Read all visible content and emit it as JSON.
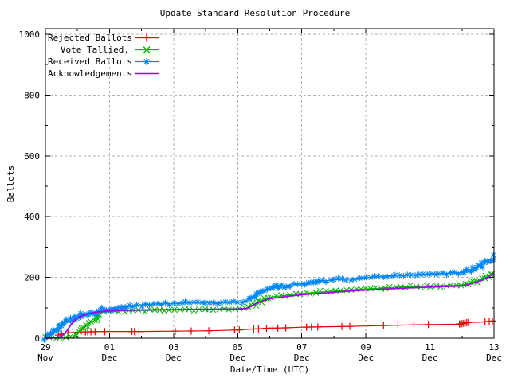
{
  "chart_data": {
    "type": "line",
    "title": "Update Standard Resolution Procedure",
    "xlabel": "Date/Time (UTC)",
    "ylabel": "Ballots",
    "ylim": [
      0,
      1000
    ],
    "grid": true,
    "legend_position": "top-left",
    "x_axis": {
      "range_days": [
        0,
        14
      ],
      "major_tick_days": [
        0,
        2,
        4,
        6,
        8,
        10,
        12,
        14
      ],
      "minor_tick_days": [
        1,
        3,
        5,
        7,
        9,
        11,
        13
      ],
      "tick_labels": [
        {
          "day": "29",
          "month": "Nov"
        },
        {
          "day": "01",
          "month": "Dec"
        },
        {
          "day": "03",
          "month": "Dec"
        },
        {
          "day": "05",
          "month": "Dec"
        },
        {
          "day": "07",
          "month": "Dec"
        },
        {
          "day": "09",
          "month": "Dec"
        },
        {
          "day": "11",
          "month": "Dec"
        },
        {
          "day": "13",
          "month": "Dec"
        }
      ]
    },
    "y_axis": {
      "major_ticks": [
        0,
        200,
        400,
        600,
        800,
        1000
      ],
      "minor_ticks": [
        100,
        300,
        500,
        700,
        900
      ]
    },
    "colors": {
      "background": "#ffffff",
      "border": "#000000",
      "grid": "#b0b0b0",
      "rejected": "#ee0000",
      "tallied": "#00b400",
      "received": "#0087f5",
      "acknowledgements": "#a000f0"
    },
    "series": [
      {
        "name": "Rejected Ballots",
        "color": "#ee0000",
        "marker": "plus",
        "style": "linespoints",
        "points": [
          [
            0,
            0
          ],
          [
            0.33,
            0
          ],
          [
            0.4,
            10
          ],
          [
            0.55,
            15
          ],
          [
            0.75,
            18
          ],
          [
            1,
            20
          ],
          [
            1.4,
            21
          ],
          [
            2,
            22
          ],
          [
            3,
            22
          ],
          [
            4,
            23
          ],
          [
            5,
            24
          ],
          [
            6,
            27
          ],
          [
            6.5,
            30
          ],
          [
            7,
            33
          ],
          [
            7.5,
            34
          ],
          [
            8,
            36
          ],
          [
            9,
            38
          ],
          [
            10,
            40
          ],
          [
            11,
            43
          ],
          [
            12,
            45
          ],
          [
            12.9,
            46
          ],
          [
            13,
            48
          ],
          [
            13.2,
            52
          ],
          [
            13.6,
            53
          ],
          [
            13.8,
            55
          ],
          [
            14,
            57
          ]
        ],
        "marker_days": [
          0.4,
          0.5,
          0.7,
          1.25,
          1.32,
          1.42,
          1.55,
          1.85,
          2.7,
          2.78,
          2.92,
          4.05,
          4.55,
          5.1,
          5.9,
          6.05,
          6.5,
          6.65,
          6.9,
          7.1,
          7.25,
          7.5,
          8.15,
          8.3,
          8.5,
          9.25,
          9.5,
          10.55,
          11.0,
          11.5,
          11.95,
          12.92,
          12.96,
          13.0,
          13.05,
          13.1,
          13.15,
          13.2,
          13.72,
          13.85,
          13.95
        ]
      },
      {
        "name": "Vote Tallied,",
        "color": "#00b400",
        "marker": "cross",
        "style": "linespoints",
        "points": [
          [
            0,
            0
          ],
          [
            0.5,
            1
          ],
          [
            0.85,
            4
          ],
          [
            1,
            12
          ],
          [
            1.15,
            28
          ],
          [
            1.3,
            42
          ],
          [
            1.45,
            54
          ],
          [
            1.55,
            60
          ],
          [
            1.6,
            63
          ],
          [
            1.65,
            84
          ],
          [
            2,
            88
          ],
          [
            2.5,
            90
          ],
          [
            3,
            91
          ],
          [
            4,
            93
          ],
          [
            5,
            95
          ],
          [
            6,
            97
          ],
          [
            6.3,
            99
          ],
          [
            6.6,
            118
          ],
          [
            6.9,
            131
          ],
          [
            7,
            135
          ],
          [
            7.5,
            141
          ],
          [
            8,
            147
          ],
          [
            8.5,
            151
          ],
          [
            9,
            155
          ],
          [
            9.5,
            159
          ],
          [
            10,
            162
          ],
          [
            10.5,
            165
          ],
          [
            11,
            168
          ],
          [
            11.5,
            170
          ],
          [
            12,
            172
          ],
          [
            12.5,
            173
          ],
          [
            13,
            175
          ],
          [
            13.2,
            179
          ],
          [
            13.5,
            190
          ],
          [
            13.8,
            203
          ],
          [
            14,
            218
          ]
        ]
      },
      {
        "name": "Received Ballots",
        "color": "#0087f5",
        "marker": "asterisk",
        "style": "linespoints",
        "points": [
          [
            0,
            2
          ],
          [
            0.15,
            12
          ],
          [
            0.3,
            25
          ],
          [
            0.45,
            38
          ],
          [
            0.6,
            52
          ],
          [
            0.75,
            62
          ],
          [
            0.9,
            70
          ],
          [
            1.1,
            77
          ],
          [
            1.3,
            82
          ],
          [
            1.5,
            86
          ],
          [
            1.7,
            90
          ],
          [
            2,
            96
          ],
          [
            2.3,
            102
          ],
          [
            2.6,
            106
          ],
          [
            3,
            110
          ],
          [
            3.5,
            113
          ],
          [
            4,
            114
          ],
          [
            4.5,
            116
          ],
          [
            5,
            116
          ],
          [
            5.5,
            117
          ],
          [
            6,
            118
          ],
          [
            6.25,
            120
          ],
          [
            6.4,
            132
          ],
          [
            6.6,
            147
          ],
          [
            6.8,
            158
          ],
          [
            7,
            165
          ],
          [
            7.3,
            170
          ],
          [
            7.6,
            174
          ],
          [
            8,
            179
          ],
          [
            8.5,
            186
          ],
          [
            9,
            192
          ],
          [
            9.5,
            196
          ],
          [
            10,
            199
          ],
          [
            10.5,
            204
          ],
          [
            11,
            207
          ],
          [
            11.5,
            209
          ],
          [
            12,
            211
          ],
          [
            12.5,
            213
          ],
          [
            13,
            216
          ],
          [
            13.2,
            221
          ],
          [
            13.4,
            229
          ],
          [
            13.6,
            240
          ],
          [
            13.8,
            251
          ],
          [
            14,
            264
          ]
        ]
      },
      {
        "name": "Acknowledgements",
        "color": "#a000f0",
        "marker": "none",
        "style": "lines",
        "points": [
          [
            0,
            0
          ],
          [
            0.3,
            1
          ],
          [
            0.5,
            6
          ],
          [
            0.65,
            22
          ],
          [
            0.8,
            45
          ],
          [
            0.9,
            58
          ],
          [
            1,
            67
          ],
          [
            1.2,
            76
          ],
          [
            1.4,
            82
          ],
          [
            1.6,
            86
          ],
          [
            1.8,
            88
          ],
          [
            2,
            90
          ],
          [
            2.5,
            92
          ],
          [
            3,
            93
          ],
          [
            4,
            94
          ],
          [
            5,
            95
          ],
          [
            6,
            96
          ],
          [
            6.3,
            98
          ],
          [
            6.6,
            115
          ],
          [
            6.9,
            127
          ],
          [
            7,
            130
          ],
          [
            7.5,
            137
          ],
          [
            8,
            143
          ],
          [
            8.5,
            147
          ],
          [
            9,
            151
          ],
          [
            9.5,
            155
          ],
          [
            10,
            158
          ],
          [
            10.5,
            161
          ],
          [
            11,
            164
          ],
          [
            11.5,
            166
          ],
          [
            12,
            168
          ],
          [
            12.5,
            170
          ],
          [
            13,
            172
          ],
          [
            13.2,
            176
          ],
          [
            13.5,
            186
          ],
          [
            13.8,
            199
          ],
          [
            14,
            214
          ]
        ]
      }
    ]
  }
}
